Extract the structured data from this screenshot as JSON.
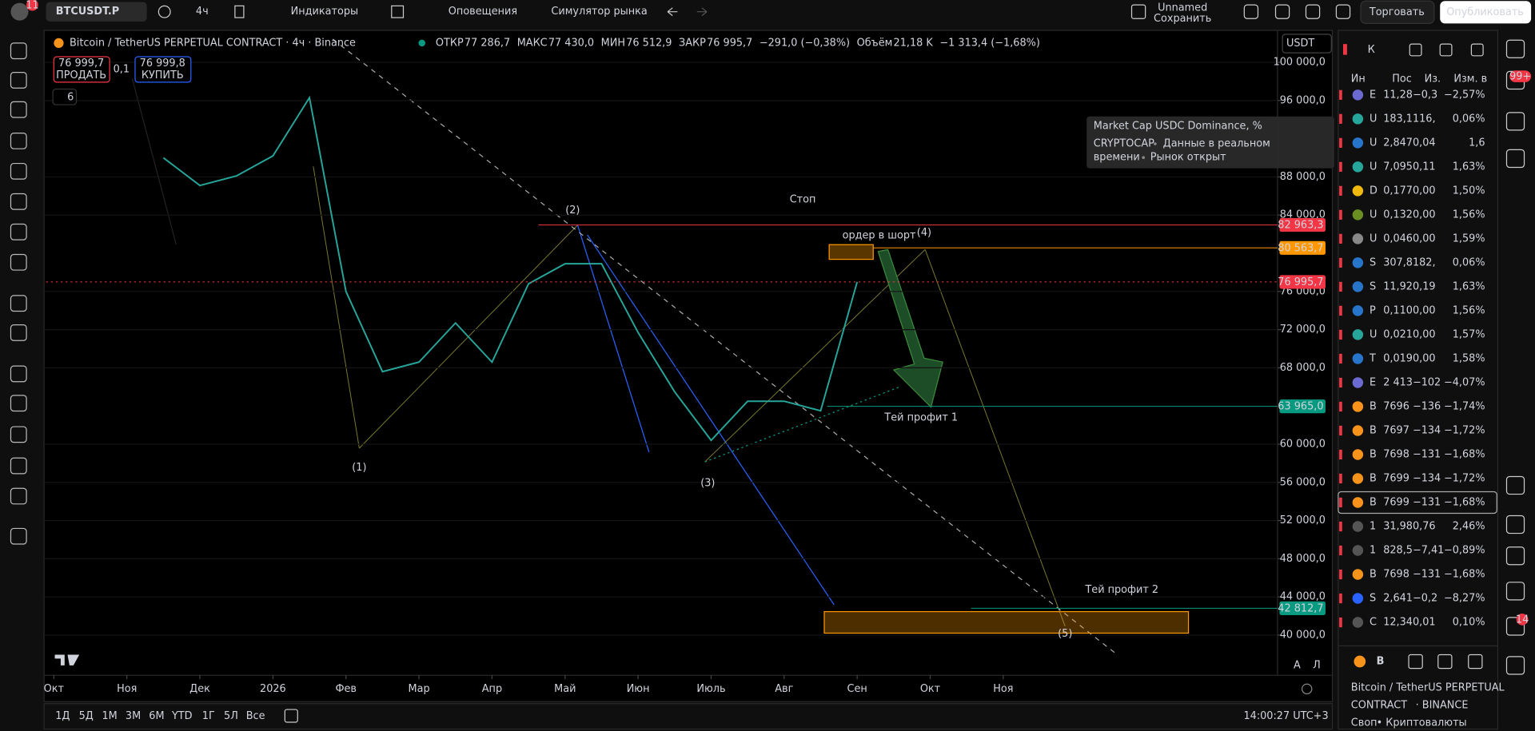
{
  "toolbar": {
    "notifications": "11",
    "symbol": "BTCUSDT.P",
    "interval": "4ч",
    "indicators": "Индикаторы",
    "alerts": "Оповещения",
    "replay": "Симулятор рынка",
    "layout_name": "Unnamed",
    "save": "Сохранить",
    "trade": "Торговать",
    "publish": "Опубликовать"
  },
  "legend": {
    "title": "Bitcoin / TetherUS PERPETUAL CONTRACT · 4ч · Binance",
    "open_label": "ОТКР",
    "open": "77 286,7",
    "high_label": "МАКС",
    "high": "77 430,0",
    "low_label": "МИН",
    "low": "76 512,9",
    "close_label": "ЗАКР",
    "close": "76 995,7",
    "change": "−291,0 (−0,38%)",
    "volume_label": "Объём",
    "volume": "21,18 K",
    "volume_change": "−1 313,4 (−1,68%)"
  },
  "trade_buttons": {
    "sell_price": "76 999,7",
    "sell": "ПРОДАТЬ",
    "spread": "0,1",
    "buy_price": "76 999,8",
    "buy": "КУПИТЬ",
    "indicators_count": "6"
  },
  "currency": "USDT",
  "chart_data": {
    "type": "line",
    "color": "#26a69a",
    "categories": [
      "Окт",
      null,
      "Ноя",
      null,
      "Дек",
      null,
      "2026",
      null,
      "Фев",
      null,
      "Мар",
      null,
      "Апр",
      null,
      "Май",
      null,
      "Июн",
      null,
      "Июль",
      null,
      "Авг",
      null,
      "Сен",
      null,
      "Окт",
      null,
      "Ноя"
    ],
    "values": [
      null,
      null,
      null,
      90000,
      87100,
      88100,
      90200,
      96300,
      76000,
      67600,
      68600,
      72700,
      68600,
      76800,
      78900,
      78900,
      71700,
      65500,
      60400,
      64500,
      64500,
      63500,
      76995.7,
      null,
      null,
      null,
      null
    ],
    "ylim": [
      35800,
      101200
    ],
    "yticks": [
      {
        "value": 40000,
        "label": "40 000,0"
      },
      {
        "value": 44000,
        "label": "44 000,0"
      },
      {
        "value": 48000,
        "label": "48 000,0"
      },
      {
        "value": 52000,
        "label": "52 000,0"
      },
      {
        "value": 56000,
        "label": "56 000,0"
      },
      {
        "value": 60000,
        "label": "60 000,0"
      },
      {
        "value": 68000,
        "label": "68 000,0"
      },
      {
        "value": 72000,
        "label": "72 000,0"
      },
      {
        "value": 76000,
        "label": "76 000,0"
      },
      {
        "value": 84000,
        "label": "84 000,0"
      },
      {
        "value": 88000,
        "label": "88 000,0"
      },
      {
        "value": 96000,
        "label": "96 000,0"
      },
      {
        "value": 100000,
        "label": "100 000,0"
      }
    ],
    "levels": [
      {
        "value": 82963.3,
        "label": "82 963,3",
        "color": "#f23645"
      },
      {
        "value": 80563.7,
        "label": "80 563,7",
        "color": "#ff9800"
      },
      {
        "value": 76995.7,
        "label": "76 995,7",
        "color": "#f23645"
      },
      {
        "value": 63965.0,
        "label": "63 965,0",
        "color": "#089981"
      },
      {
        "value": 42812.7,
        "label": "42 812,7",
        "color": "#089981"
      }
    ],
    "annotations": {
      "stop": "Стоп",
      "short_order": "ордер в шорт",
      "take_profit_1": "Тей профит 1",
      "take_profit_2": "Тей профит 2",
      "waves": [
        "(1)",
        "(2)",
        "(3)",
        "(4)",
        "(5)"
      ]
    }
  },
  "tooltip": {
    "title": "Market Cap USDC Dominance, %",
    "source": "CRYPTOCAP",
    "realtime": "Данные в реальном",
    "realtime_2": "времени",
    "market": "Рынок открыт"
  },
  "bottom_bar": {
    "ranges": [
      "1Д",
      "5Д",
      "1М",
      "3М",
      "6М",
      "YTD",
      "1Г",
      "5Л",
      "Все"
    ],
    "time": "14:00:27 UTC+3",
    "auto": "А",
    "log": "Л"
  },
  "watchlist": {
    "title": "К",
    "columns": [
      "Ин",
      "Пос",
      "Из.",
      "Изм. в"
    ],
    "rows": [
      [
        "E",
        "11,28",
        "−0,3",
        "−2,57%",
        "#f23645",
        "#6a6ad0"
      ],
      [
        "U",
        "183,1",
        "116,",
        "0,06%",
        "#22ab94",
        "#26a69a"
      ],
      [
        "U",
        "2,847",
        "0,04",
        "1,6",
        "#22ab94",
        "#2775ca"
      ],
      [
        "U",
        "7,095",
        "0,11",
        "1,63%",
        "#22ab94",
        "#26a69a"
      ],
      [
        "D",
        "0,177",
        "0,00",
        "1,50%",
        "#22ab94",
        "#f0b90b"
      ],
      [
        "U",
        "0,132",
        "0,00",
        "1,56%",
        "#22ab94",
        "#6b8e23"
      ],
      [
        "U",
        "0,046",
        "0,00",
        "1,59%",
        "#22ab94",
        "#888888"
      ],
      [
        "S",
        "307,8",
        "182,",
        "0,06%",
        "#22ab94",
        "#2775ca"
      ],
      [
        "S",
        "11,92",
        "0,19",
        "1,63%",
        "#22ab94",
        "#2775ca"
      ],
      [
        "P",
        "0,110",
        "0,00",
        "1,56%",
        "#22ab94",
        "#2775ca"
      ],
      [
        "U",
        "0,021",
        "0,00",
        "1,57%",
        "#22ab94",
        "#26a69a"
      ],
      [
        "T",
        "0,019",
        "0,00",
        "1,58%",
        "#22ab94",
        "#2775ca"
      ],
      [
        "E",
        "2 413",
        "−102",
        "−4,07%",
        "#f23645",
        "#6a6ad0"
      ],
      [
        "B",
        "7696",
        "−136",
        "−1,74%",
        "#f23645",
        "#f7931a"
      ],
      [
        "B",
        "7697",
        "−134",
        "−1,72%",
        "#f23645",
        "#f7931a"
      ],
      [
        "B",
        "7698",
        "−131",
        "−1,68%",
        "#f23645",
        "#f7931a"
      ],
      [
        "B",
        "7699",
        "−134",
        "−1,72%",
        "#f23645",
        "#f7931a"
      ],
      [
        "B",
        "7699",
        "−131",
        "−1,68%",
        "#f23645",
        "#f7931a"
      ],
      [
        "1",
        "31,98",
        "0,76",
        "2,46%",
        "#22ab94",
        "#555555"
      ],
      [
        "1",
        "828,5",
        "−7,41",
        "−0,89%",
        "#f23645",
        "#555555"
      ],
      [
        "B",
        "7698",
        "−131",
        "−1,68%",
        "#f23645",
        "#f7931a"
      ],
      [
        "S",
        "2,641",
        "−0,2",
        "−8,27%",
        "#f23645",
        "#2962ff"
      ],
      [
        "C",
        "12,34",
        "0,01",
        "0,10%",
        "#22ab94",
        "#555555"
      ]
    ]
  },
  "symbol_panel": {
    "short": "B",
    "name": "Bitcoin / TetherUS PERPETUAL",
    "contract": "CONTRACT",
    "exchange": "· BINANCE",
    "kind": "Своп",
    "category": "• Криптовалюты"
  },
  "badges": {
    "alerts": "99+",
    "messages": "14"
  }
}
